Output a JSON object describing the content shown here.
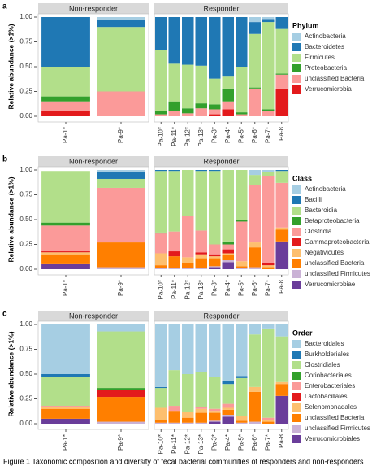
{
  "chart_data": [
    {
      "type": "bar",
      "stacked": true,
      "label": "a",
      "ylabel": "Relative abundance (>1%)",
      "legend_title": "Phylum",
      "facets": [
        {
          "title": "Non-responder",
          "categories": [
            "Pa-1*",
            "Pa-9*"
          ]
        },
        {
          "title": "Responder",
          "categories": [
            "Pa-10*",
            "Pa-11*",
            "Pa-12*",
            "Pa-13*",
            "Pa-3*",
            "Pa-4*",
            "Pa-5*",
            "Pa-6*",
            "Pa-7*",
            "Pa-8"
          ]
        }
      ],
      "ylim": [
        0,
        1
      ],
      "yticks": [
        {
          "value": 0,
          "label": "0.00"
        },
        {
          "value": 0.25,
          "label": "0.25"
        },
        {
          "value": 0.5,
          "label": "0.50"
        },
        {
          "value": 0.75,
          "label": "0.75"
        },
        {
          "value": 1,
          "label": "1.00"
        }
      ],
      "series": [
        {
          "name": "Actinobacteria",
          "color": "#a6cee3",
          "values": [
            0,
            0.03,
            0,
            0,
            0,
            0,
            0,
            0,
            0,
            0.05,
            0.02,
            0
          ]
        },
        {
          "name": "Bacteroidetes",
          "color": "#1f78b4",
          "values": [
            0.5,
            0.07,
            0.33,
            0.47,
            0.48,
            0.49,
            0.62,
            0.6,
            0.5,
            0.12,
            0.03,
            0.12
          ]
        },
        {
          "name": "Firmicutes",
          "color": "#b2df8a",
          "values": [
            0.3,
            0.65,
            0.62,
            0.38,
            0.44,
            0.38,
            0.26,
            0.12,
            0.46,
            0.54,
            0.88,
            0.45
          ]
        },
        {
          "name": "Proteobacteria",
          "color": "#33a02c",
          "values": [
            0.05,
            0,
            0.03,
            0.1,
            0.05,
            0.05,
            0.05,
            0.13,
            0.02,
            0.01,
            0.02,
            0.01
          ]
        },
        {
          "name": "unclassified Bacteria",
          "color": "#fb9a99",
          "values": [
            0.1,
            0.25,
            0.02,
            0.05,
            0.03,
            0.08,
            0.05,
            0.08,
            0.02,
            0.28,
            0.05,
            0.14
          ]
        },
        {
          "name": "Verrucomicrobia",
          "color": "#e31a1c",
          "values": [
            0.05,
            0,
            0,
            0,
            0,
            0,
            0.02,
            0.07,
            0,
            0,
            0,
            0.28
          ]
        }
      ]
    },
    {
      "type": "bar",
      "stacked": true,
      "label": "b",
      "ylabel": "Relative abundance (>1%)",
      "legend_title": "Class",
      "facets": [
        {
          "title": "Non-responder",
          "categories": [
            "Pa-1*",
            "Pa-9*"
          ]
        },
        {
          "title": "Responder",
          "categories": [
            "Pa-10*",
            "Pa-11*",
            "Pa-12*",
            "Pa-13*",
            "Pa-3*",
            "Pa-4*",
            "Pa-5*",
            "Pa-6*",
            "Pa-7*",
            "Pa-8"
          ]
        }
      ],
      "ylim": [
        0,
        1
      ],
      "yticks": [
        {
          "value": 0,
          "label": "0.00"
        },
        {
          "value": 0.25,
          "label": "0.25"
        },
        {
          "value": 0.5,
          "label": "0.50"
        },
        {
          "value": 0.75,
          "label": "0.75"
        },
        {
          "value": 1,
          "label": "1.00"
        }
      ],
      "series": [
        {
          "name": "Actinobacteria",
          "color": "#a6cee3",
          "values": [
            0,
            0.02,
            0,
            0,
            0,
            0,
            0,
            0,
            0,
            0.05,
            0.02,
            0
          ]
        },
        {
          "name": "Bacilli",
          "color": "#1f78b4",
          "values": [
            0,
            0.07,
            0.01,
            0.01,
            0,
            0.01,
            0.01,
            0,
            0,
            0,
            0,
            0.01
          ]
        },
        {
          "name": "Bacteroidia",
          "color": "#b2df8a",
          "values": [
            0.52,
            0.09,
            0.62,
            0.61,
            0.46,
            0.6,
            0.74,
            0.72,
            0.5,
            0.1,
            0.04,
            0.12
          ]
        },
        {
          "name": "Betaproteobacteria",
          "color": "#33a02c",
          "values": [
            0.03,
            0,
            0.01,
            0,
            0,
            0,
            0,
            0.03,
            0.02,
            0,
            0,
            0
          ]
        },
        {
          "name": "Clostridia",
          "color": "#fb9a99",
          "values": [
            0.26,
            0.55,
            0.2,
            0.2,
            0.42,
            0.22,
            0.1,
            0.05,
            0.4,
            0.58,
            0.88,
            0.45
          ]
        },
        {
          "name": "Gammaproteobacteria",
          "color": "#e31a1c",
          "values": [
            0.01,
            0,
            0,
            0.05,
            0,
            0.02,
            0.02,
            0.04,
            0,
            0,
            0.02,
            0
          ]
        },
        {
          "name": "Negativicutes",
          "color": "#fdbf6f",
          "values": [
            0.02,
            0,
            0.12,
            0,
            0.06,
            0.04,
            0.02,
            0.02,
            0.05,
            0.05,
            0.02,
            0.02
          ]
        },
        {
          "name": "unclassified Bacteria",
          "color": "#ff7f00",
          "values": [
            0.1,
            0.25,
            0.03,
            0.12,
            0.05,
            0.1,
            0.08,
            0.05,
            0.02,
            0.2,
            0.02,
            0.12
          ]
        },
        {
          "name": "unclassified Firmicutes",
          "color": "#cab2d6",
          "values": [
            0,
            0.02,
            0.01,
            0.01,
            0.01,
            0.01,
            0.01,
            0.02,
            0.01,
            0.02,
            0,
            0
          ]
        },
        {
          "name": "Verrucomicrobiae",
          "color": "#6a3d9a",
          "values": [
            0.05,
            0,
            0,
            0,
            0,
            0,
            0.02,
            0.07,
            0,
            0,
            0,
            0.28
          ]
        }
      ]
    },
    {
      "type": "bar",
      "stacked": true,
      "label": "c",
      "ylabel": "Relative abundance (>1%)",
      "legend_title": "Order",
      "facets": [
        {
          "title": "Non-responder",
          "categories": [
            "Pa-1*",
            "Pa-9*"
          ]
        },
        {
          "title": "Responder",
          "categories": [
            "Pa-10*",
            "Pa-11*",
            "Pa-12*",
            "Pa-13*",
            "Pa-3*",
            "Pa-4*",
            "Pa-5*",
            "Pa-6*",
            "Pa-7*",
            "Pa-8"
          ]
        }
      ],
      "ylim": [
        0,
        1
      ],
      "yticks": [
        {
          "value": 0,
          "label": "0.00"
        },
        {
          "value": 0.25,
          "label": "0.25"
        },
        {
          "value": 0.5,
          "label": "0.50"
        },
        {
          "value": 0.75,
          "label": "0.75"
        },
        {
          "value": 1,
          "label": "1.00"
        }
      ],
      "series": [
        {
          "name": "Bacteroidales",
          "color": "#a6cee3",
          "values": [
            0.5,
            0.07,
            0.63,
            0.46,
            0.5,
            0.48,
            0.53,
            0.57,
            0.52,
            0.1,
            0.04,
            0.12
          ]
        },
        {
          "name": "Burkholderiales",
          "color": "#1f78b4",
          "values": [
            0.03,
            0,
            0.01,
            0,
            0,
            0,
            0,
            0.03,
            0.02,
            0,
            0,
            0
          ]
        },
        {
          "name": "Clostridiales",
          "color": "#b2df8a",
          "values": [
            0.29,
            0.57,
            0.2,
            0.36,
            0.38,
            0.35,
            0.32,
            0.2,
            0.38,
            0.53,
            0.9,
            0.46
          ]
        },
        {
          "name": "Coriobacteriales",
          "color": "#33a02c",
          "values": [
            0,
            0.02,
            0,
            0,
            0,
            0,
            0,
            0,
            0,
            0,
            0,
            0
          ]
        },
        {
          "name": "Enterobacteriales",
          "color": "#fb9a99",
          "values": [
            0.01,
            0,
            0,
            0.05,
            0,
            0.02,
            0.02,
            0.04,
            0,
            0,
            0.02,
            0
          ]
        },
        {
          "name": "Lactobacillales",
          "color": "#e31a1c",
          "values": [
            0,
            0.07,
            0,
            0,
            0,
            0,
            0,
            0,
            0,
            0,
            0,
            0
          ]
        },
        {
          "name": "Selenomonadales",
          "color": "#fdbf6f",
          "values": [
            0.02,
            0,
            0.12,
            0,
            0.06,
            0.04,
            0.02,
            0.02,
            0.05,
            0.05,
            0.02,
            0.02
          ]
        },
        {
          "name": "unclassified Bacteria",
          "color": "#ff7f00",
          "values": [
            0.1,
            0.25,
            0.03,
            0.12,
            0.05,
            0.1,
            0.08,
            0.05,
            0.02,
            0.3,
            0.02,
            0.12
          ]
        },
        {
          "name": "unclassified Firmicutes",
          "color": "#cab2d6",
          "values": [
            0,
            0.02,
            0.01,
            0.01,
            0.01,
            0.01,
            0.01,
            0.02,
            0.01,
            0.02,
            0,
            0
          ]
        },
        {
          "name": "Verrucomicrobiales",
          "color": "#6a3d9a",
          "values": [
            0.05,
            0,
            0,
            0,
            0,
            0,
            0.02,
            0.07,
            0,
            0,
            0,
            0.28
          ]
        }
      ]
    }
  ],
  "caption": "Figure 1  Taxonomic composition and diversity of fecal bacterial communities of responders and non-responders"
}
